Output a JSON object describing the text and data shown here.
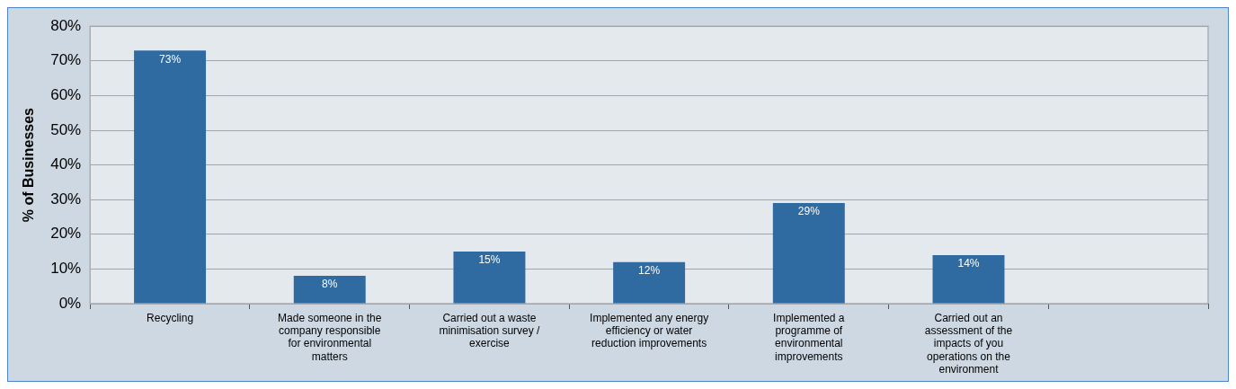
{
  "chart_data": {
    "type": "bar",
    "ylabel": "% of Businesses",
    "categories": [
      "Recycling",
      "Made someone in the company responsible for environmental matters",
      "Carried out a waste minimisation survey / exercise",
      "Implemented any energy efficiency or water reduction improvements",
      "Implemented a programme of environmental improvements",
      "Carried out an assessment of the impacts of you operations on the environment",
      null
    ],
    "values": [
      73,
      8,
      15,
      12,
      29,
      14,
      null
    ],
    "value_labels": [
      "73%",
      "8%",
      "15%",
      "12%",
      "29%",
      "14%",
      null
    ],
    "color": "#2f6aa0",
    "ylim": [
      0,
      80
    ],
    "yticks": [
      {
        "value": 0,
        "label": "0%"
      },
      {
        "value": 10,
        "label": "10%"
      },
      {
        "value": 20,
        "label": "20%"
      },
      {
        "value": 30,
        "label": "30%"
      },
      {
        "value": 40,
        "label": "40%"
      },
      {
        "value": 50,
        "label": "50%"
      },
      {
        "value": 60,
        "label": "60%"
      },
      {
        "value": 70,
        "label": "70%"
      },
      {
        "value": 80,
        "label": "80%"
      }
    ],
    "grid": "y",
    "legend": false
  }
}
